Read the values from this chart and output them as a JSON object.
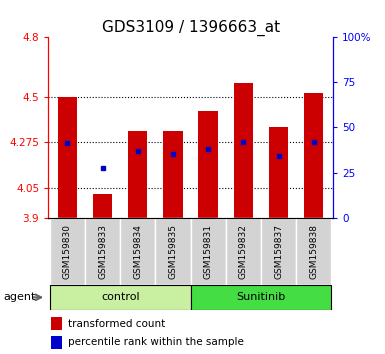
{
  "title": "GDS3109 / 1396663_at",
  "samples": [
    "GSM159830",
    "GSM159833",
    "GSM159834",
    "GSM159835",
    "GSM159831",
    "GSM159832",
    "GSM159837",
    "GSM159838"
  ],
  "bar_tops": [
    4.5,
    4.02,
    4.33,
    4.33,
    4.43,
    4.57,
    4.35,
    4.52
  ],
  "bar_bottom": 3.9,
  "blue_dots": [
    4.27,
    4.15,
    4.235,
    4.22,
    4.245,
    4.275,
    4.21,
    4.275
  ],
  "ylim_left": [
    3.9,
    4.8
  ],
  "ylim_right": [
    0,
    100
  ],
  "yticks_left": [
    3.9,
    4.05,
    4.275,
    4.5,
    4.8
  ],
  "yticks_right": [
    0,
    25,
    50,
    75,
    100
  ],
  "ytick_labels_left": [
    "3.9",
    "4.05",
    "4.275",
    "4.5",
    "4.8"
  ],
  "ytick_labels_right": [
    "0",
    "25",
    "50",
    "75",
    "100%"
  ],
  "gridlines": [
    4.05,
    4.275,
    4.5
  ],
  "bar_color": "#cc0000",
  "dot_color": "#0000cc",
  "group_labels": [
    "control",
    "Sunitinib"
  ],
  "group_colors": [
    "#c8f0a0",
    "#44dd44"
  ],
  "agent_label": "agent",
  "legend_items": [
    "transformed count",
    "percentile rank within the sample"
  ],
  "legend_colors": [
    "#cc0000",
    "#0000cc"
  ],
  "title_fontsize": 11,
  "sample_fontsize": 6.5,
  "legend_fontsize": 7.5,
  "group_fontsize": 8,
  "agent_fontsize": 8,
  "tick_fontsize": 7.5,
  "bar_width": 0.55,
  "xlim": [
    -0.55,
    7.55
  ]
}
